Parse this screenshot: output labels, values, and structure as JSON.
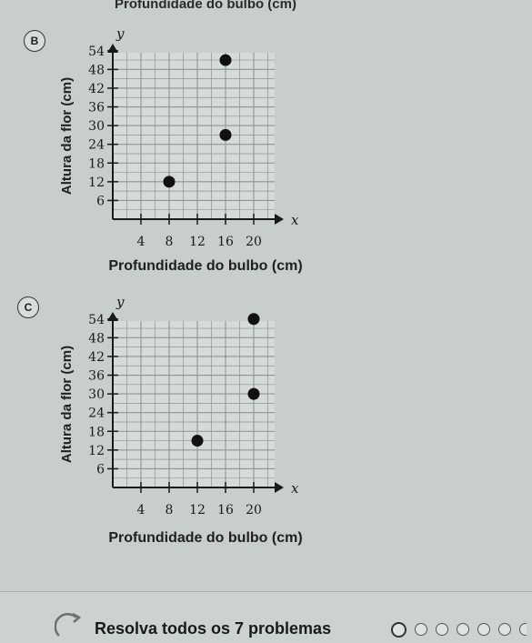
{
  "page": {
    "top_caption": "Profundidade do bulbo (cm)",
    "footer_text": "Resolva todos os 7 problemas",
    "progress_dot_count": 7
  },
  "colors": {
    "grid": "#8f9491",
    "axis": "#1a1a1a",
    "point": "#111111",
    "plot_bg": "#d6dad8"
  },
  "chart_data": [
    {
      "option": "B",
      "type": "scatter",
      "ylabel": "Altura da flor (cm)",
      "xlabel": "Profundidade do bulbo (cm)",
      "x_axis_letter": "x",
      "y_axis_letter": "y",
      "x_ticks": [
        4,
        8,
        12,
        16,
        20
      ],
      "y_ticks": [
        6,
        12,
        18,
        24,
        30,
        36,
        42,
        48,
        54
      ],
      "xlim": [
        0,
        22
      ],
      "ylim": [
        0,
        56
      ],
      "grid": true,
      "points": [
        {
          "x": 8,
          "y": 12
        },
        {
          "x": 16,
          "y": 27
        },
        {
          "x": 16,
          "y": 51
        }
      ]
    },
    {
      "option": "C",
      "type": "scatter",
      "ylabel": "Altura da flor (cm)",
      "xlabel": "Profundidade do bulbo (cm)",
      "x_axis_letter": "x",
      "y_axis_letter": "y",
      "x_ticks": [
        4,
        8,
        12,
        16,
        20
      ],
      "y_ticks": [
        6,
        12,
        18,
        24,
        30,
        36,
        42,
        48,
        54
      ],
      "xlim": [
        0,
        22
      ],
      "ylim": [
        0,
        56
      ],
      "grid": true,
      "points": [
        {
          "x": 12,
          "y": 15
        },
        {
          "x": 20,
          "y": 30
        },
        {
          "x": 20,
          "y": 54
        }
      ]
    }
  ]
}
